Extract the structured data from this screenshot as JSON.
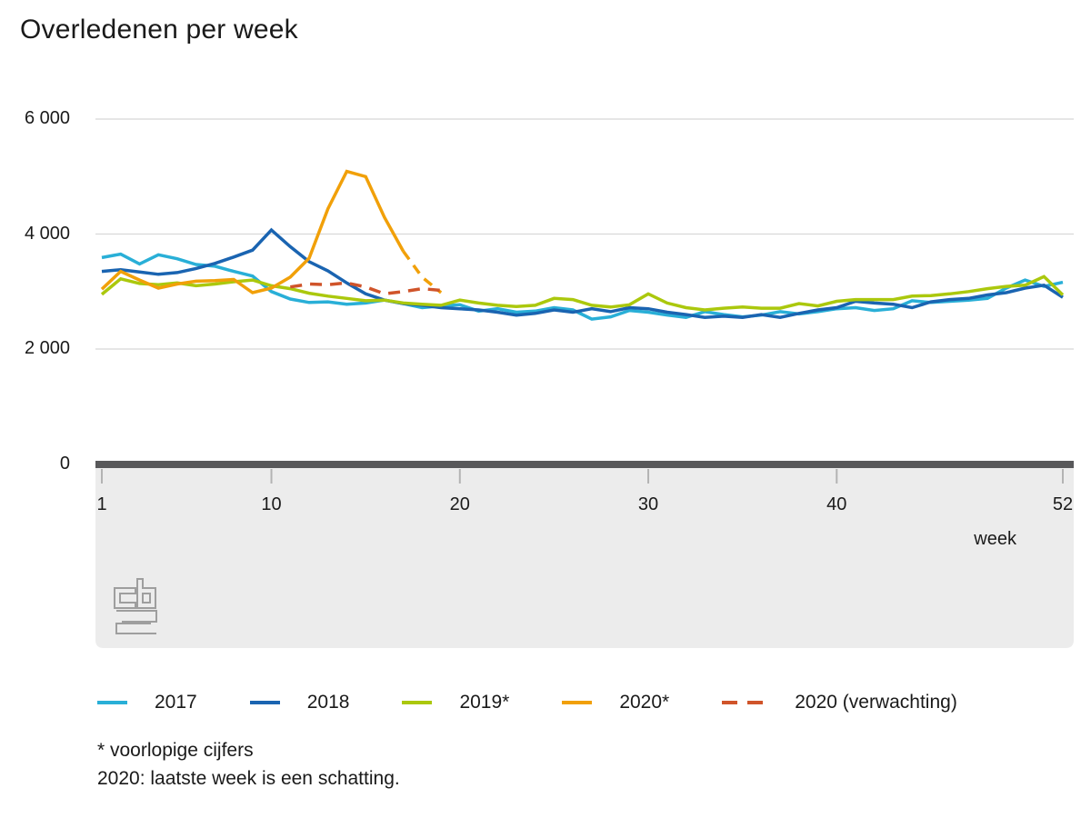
{
  "title": "Overledenen per week",
  "footnotes": [
    "* voorlopige cijfers",
    "2020: laatste week is een schatting."
  ],
  "logo_name": "cbs-logo",
  "chart_data": {
    "type": "line",
    "title": "Overledenen per week",
    "xlabel": "week",
    "ylabel": "",
    "x_range": [
      1,
      52
    ],
    "ylim": [
      0,
      6000
    ],
    "grid": "horizontal",
    "legend_position": "bottom",
    "y_ticks": [
      {
        "value": 6000,
        "label": "6 000"
      },
      {
        "value": 4000,
        "label": "4 000"
      },
      {
        "value": 2000,
        "label": "2 000"
      },
      {
        "value": 0,
        "label": "0"
      }
    ],
    "x_ticks": [
      {
        "value": 1,
        "label": "1"
      },
      {
        "value": 10,
        "label": "10"
      },
      {
        "value": 20,
        "label": "20"
      },
      {
        "value": 30,
        "label": "30"
      },
      {
        "value": 40,
        "label": "40"
      },
      {
        "value": 52,
        "label": "52"
      }
    ],
    "colors": {
      "gridline": "#d8d8d8",
      "axis_bar": "#58585a",
      "panel": "#ececec",
      "tick": "#b3b3b3",
      "logo": "#9e9e9e",
      "text": "#1a1a1a"
    },
    "series": [
      {
        "name": "2017",
        "color": "#29afd7",
        "style": "solid",
        "start_week": 1,
        "values": [
          3590,
          3650,
          3480,
          3640,
          3570,
          3470,
          3440,
          3350,
          3270,
          3000,
          2870,
          2810,
          2820,
          2780,
          2800,
          2850,
          2790,
          2720,
          2750,
          2770,
          2660,
          2700,
          2640,
          2660,
          2720,
          2680,
          2520,
          2560,
          2670,
          2640,
          2590,
          2550,
          2650,
          2600,
          2560,
          2590,
          2650,
          2610,
          2650,
          2700,
          2720,
          2670,
          2700,
          2840,
          2810,
          2830,
          2850,
          2880,
          3060,
          3200,
          3090,
          3160
        ]
      },
      {
        "name": "2018",
        "color": "#1a64b1",
        "style": "solid",
        "start_week": 1,
        "values": [
          3350,
          3380,
          3340,
          3300,
          3330,
          3400,
          3490,
          3600,
          3720,
          4070,
          3780,
          3520,
          3360,
          3150,
          2960,
          2850,
          2790,
          2760,
          2720,
          2700,
          2680,
          2640,
          2590,
          2620,
          2680,
          2640,
          2700,
          2650,
          2720,
          2700,
          2640,
          2600,
          2550,
          2570,
          2550,
          2600,
          2550,
          2620,
          2680,
          2720,
          2830,
          2800,
          2780,
          2720,
          2820,
          2860,
          2880,
          2940,
          2980,
          3060,
          3110,
          2900
        ]
      },
      {
        "name": "2019*",
        "color": "#abc80d",
        "style": "solid",
        "start_week": 1,
        "values": [
          2950,
          3220,
          3140,
          3120,
          3150,
          3100,
          3130,
          3170,
          3200,
          3100,
          3050,
          2970,
          2920,
          2880,
          2840,
          2850,
          2800,
          2780,
          2760,
          2850,
          2800,
          2760,
          2740,
          2760,
          2880,
          2860,
          2760,
          2730,
          2770,
          2960,
          2800,
          2720,
          2680,
          2710,
          2730,
          2710,
          2710,
          2790,
          2750,
          2830,
          2860,
          2860,
          2860,
          2920,
          2930,
          2960,
          3000,
          3050,
          3090,
          3110,
          3260,
          2940
        ]
      },
      {
        "name": "2020*",
        "color": "#f1a009",
        "style": "solid",
        "start_week": 1,
        "dash_from_week": 17,
        "values": [
          3040,
          3350,
          3200,
          3060,
          3130,
          3180,
          3190,
          3210,
          2980,
          3060,
          3250,
          3580,
          4440,
          5090,
          5000,
          4290,
          3700,
          3250,
          2980
        ]
      },
      {
        "name": "2020 (verwachting)",
        "color": "#d0542a",
        "style": "dashed",
        "start_week": 11,
        "values": [
          3080,
          3130,
          3120,
          3150,
          3080,
          2960,
          3000,
          3050,
          3020
        ]
      }
    ]
  }
}
